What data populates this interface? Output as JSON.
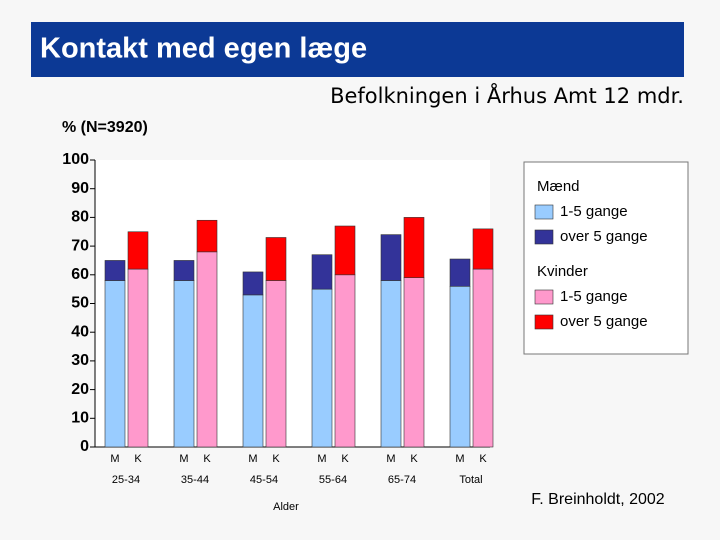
{
  "chart_data": {
    "type": "stacked_bar",
    "title": "Kontakt med egen læge",
    "subtitle": "Befolkningen i Århus Amt 12 mdr.",
    "ylabel": "% (N=3920)",
    "xlabel": "Alder",
    "source": "F. Breinholdt, 2002",
    "categories": [
      "25-34",
      "35-44",
      "45-54",
      "55-64",
      "65-74",
      "Total"
    ],
    "groups": [
      {
        "name": "Mænd",
        "label": "M",
        "series": [
          {
            "name": "1-5 gange",
            "color": "#99ccff",
            "values": [
              58,
              58,
              53,
              55,
              58,
              56
            ]
          },
          {
            "name": "over 5 gange",
            "color": "#333399",
            "values": [
              7,
              7,
              8,
              12,
              16,
              9.5
            ]
          }
        ]
      },
      {
        "name": "Kvinder",
        "label": "K",
        "series": [
          {
            "name": "1-5 gange",
            "color": "#ff99cc",
            "values": [
              62,
              68,
              58,
              60,
              59,
              62
            ]
          },
          {
            "name": "over 5 gange",
            "color": "#ff0000",
            "values": [
              13,
              11,
              15,
              17,
              21,
              14
            ]
          }
        ]
      }
    ],
    "ylim": [
      0,
      100
    ],
    "yticks": [
      0,
      10,
      20,
      30,
      40,
      50,
      60,
      70,
      80,
      90,
      100
    ]
  }
}
